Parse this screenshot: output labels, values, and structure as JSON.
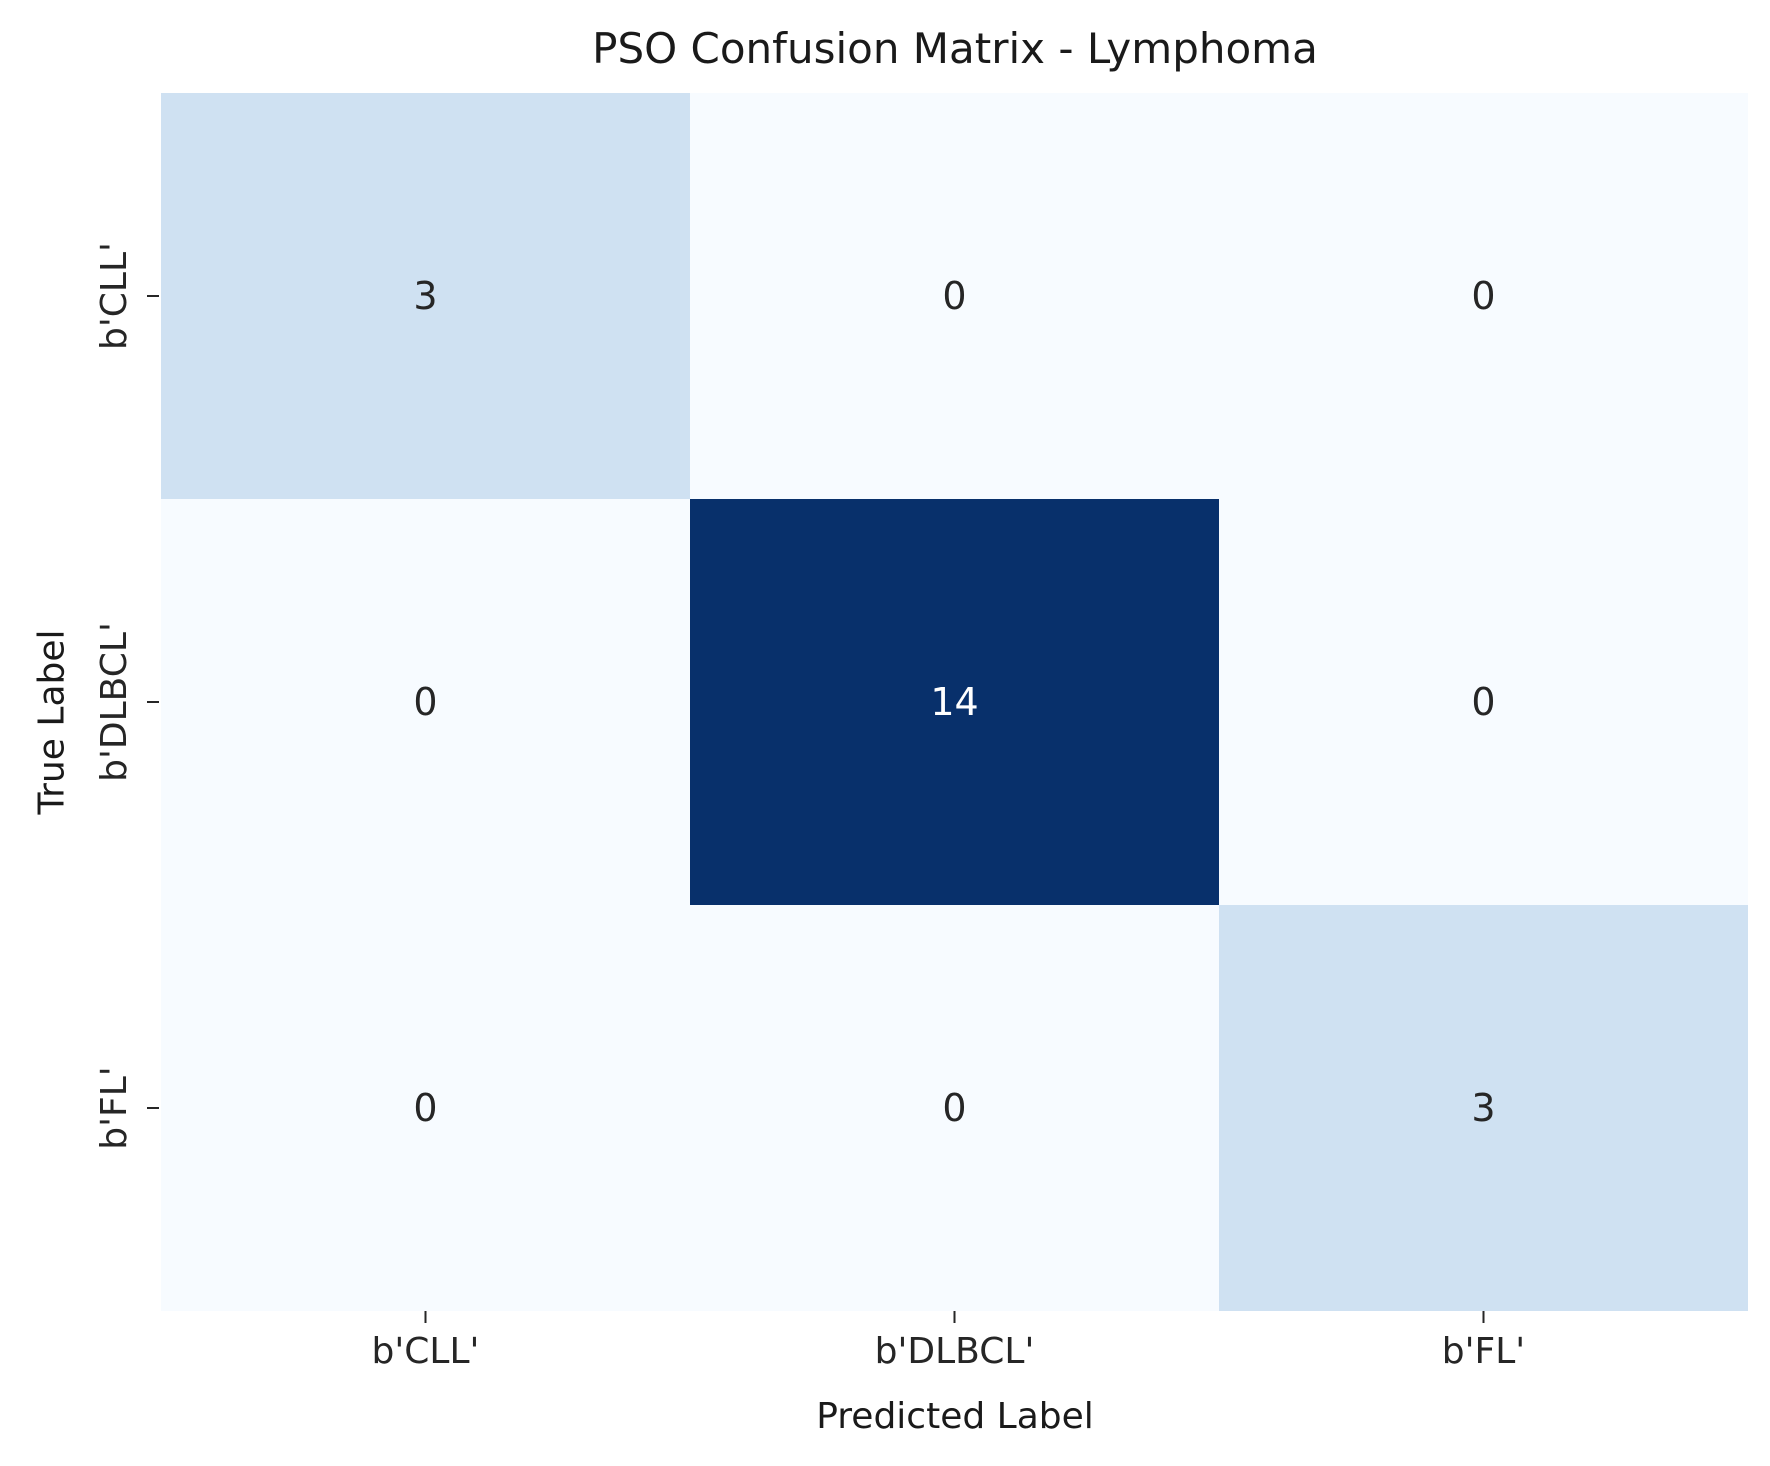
{
  "chart_data": {
    "type": "heatmap",
    "title": "PSO Confusion Matrix - Lymphoma",
    "xlabel": "Predicted Label",
    "ylabel": "True Label",
    "x_categories": [
      "b'CLL'",
      "b'DLBCL'",
      "b'FL'"
    ],
    "y_categories": [
      "b'CLL'",
      "b'DLBCL'",
      "b'FL'"
    ],
    "values": [
      [
        3,
        0,
        0
      ],
      [
        0,
        14,
        0
      ],
      [
        0,
        0,
        3
      ]
    ],
    "colormap": "Blues",
    "vmin": 0,
    "vmax": 14,
    "colorbar": false,
    "grid": false,
    "colors": {
      "low": "#f7fbff",
      "mid": "#cfe1f2",
      "high": "#08306b",
      "text_dark": "#262626",
      "text_light": "#ffffff"
    }
  }
}
